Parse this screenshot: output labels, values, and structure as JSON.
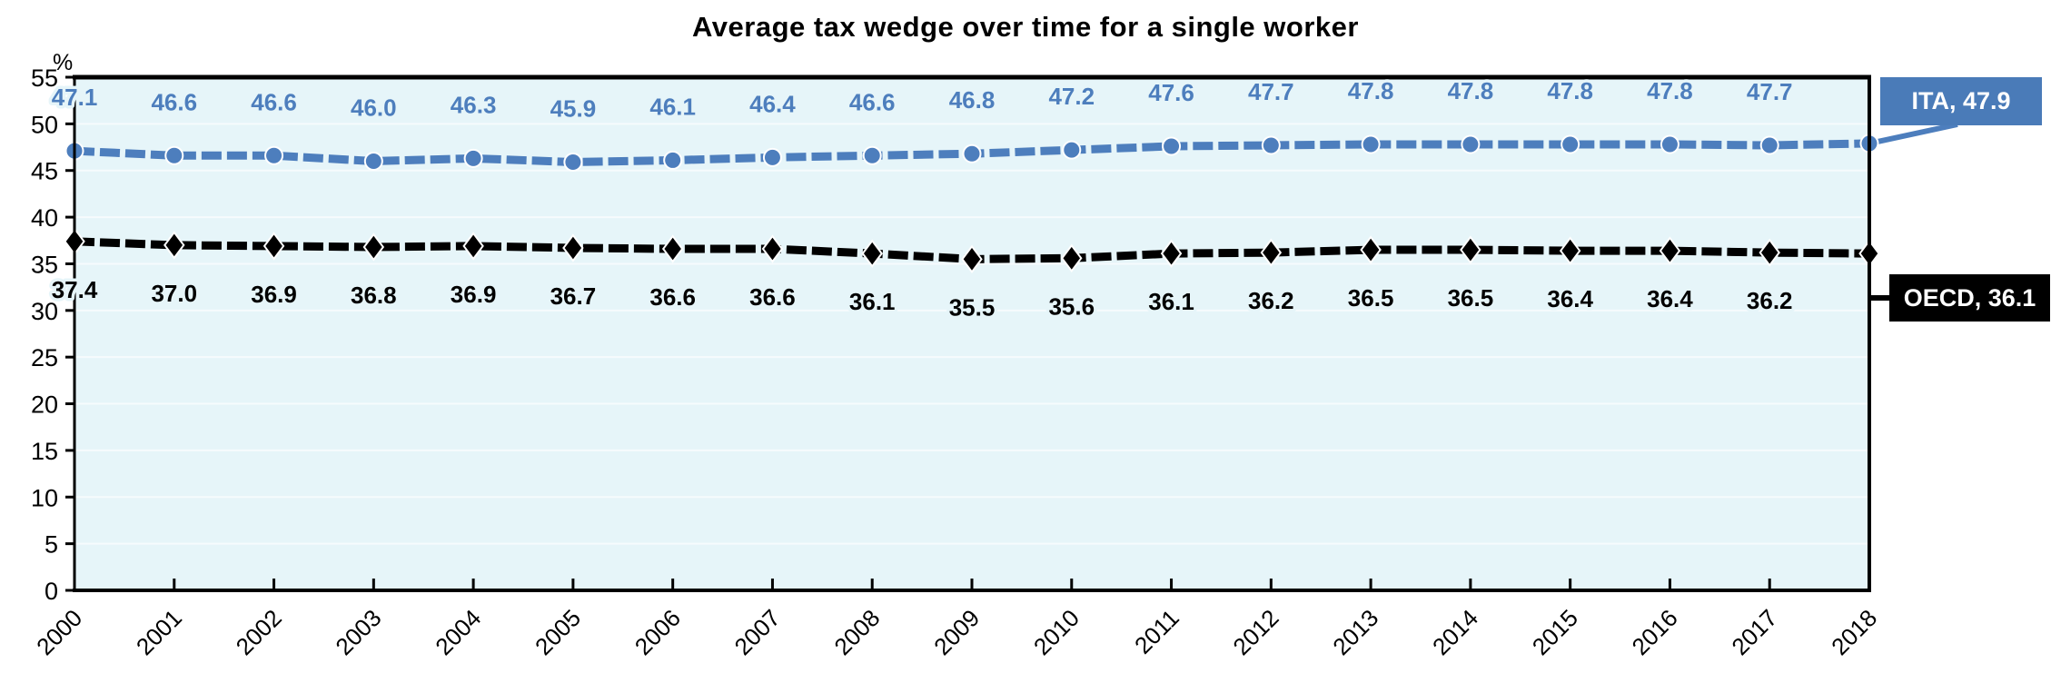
{
  "title": "Average tax wedge over time for a single worker",
  "y_axis_unit": "%",
  "chart_data": {
    "type": "line",
    "x": [
      2000,
      2001,
      2002,
      2003,
      2004,
      2005,
      2006,
      2007,
      2008,
      2009,
      2010,
      2011,
      2012,
      2013,
      2014,
      2015,
      2016,
      2017,
      2018
    ],
    "ylim": [
      0,
      55
    ],
    "ytick_step": 5,
    "grid": true,
    "plot_bg_color": "#e6f5f9",
    "gridline_color": "#f6fbfd",
    "axis_color": "#000000",
    "legend_position": "right-callout",
    "series": [
      {
        "name": "ITA",
        "color": "#4d7ebd",
        "marker": "circle",
        "endpoint_label": "ITA, 47.9",
        "values": [
          47.1,
          46.6,
          46.6,
          46.0,
          46.3,
          45.9,
          46.1,
          46.4,
          46.6,
          46.8,
          47.2,
          47.6,
          47.7,
          47.8,
          47.8,
          47.8,
          47.8,
          47.7,
          47.9
        ]
      },
      {
        "name": "OECD",
        "color": "#000000",
        "marker": "diamond",
        "endpoint_label": "OECD, 36.1",
        "values": [
          37.4,
          37.0,
          36.9,
          36.8,
          36.9,
          36.7,
          36.6,
          36.6,
          36.1,
          35.5,
          35.6,
          36.1,
          36.2,
          36.5,
          36.5,
          36.4,
          36.4,
          36.2,
          36.1
        ]
      }
    ]
  }
}
